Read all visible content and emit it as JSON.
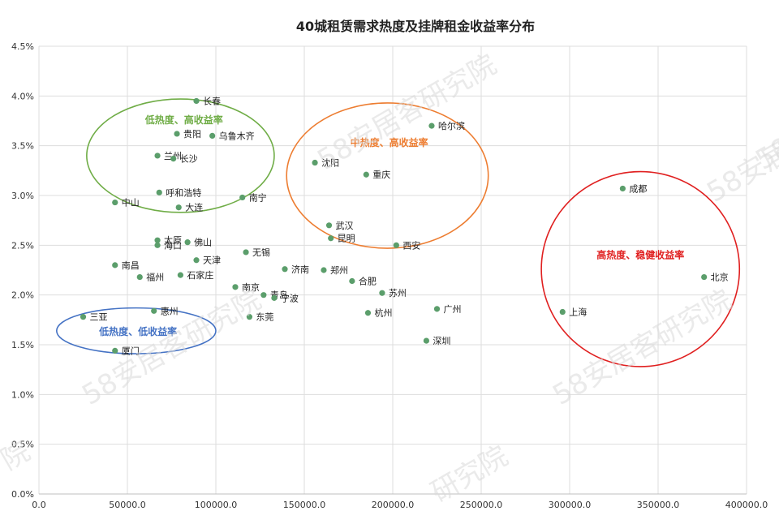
{
  "chart_data": {
    "type": "scatter",
    "title": "40城租赁需求热度及挂牌租金收益率分布",
    "xlabel": "",
    "ylabel": "",
    "xlim": [
      0,
      400000
    ],
    "ylim": [
      0,
      4.5
    ],
    "x_ticks": [
      "0.0",
      "50000.0",
      "100000.0",
      "150000.0",
      "200000.0",
      "250000.0",
      "300000.0",
      "350000.0",
      "400000.0"
    ],
    "y_ticks": [
      "0.0%",
      "0.5%",
      "1.0%",
      "1.5%",
      "2.0%",
      "2.5%",
      "3.0%",
      "3.5%",
      "4.0%",
      "4.5%"
    ],
    "grid": true,
    "point_color": "#5b9e6b",
    "points": [
      {
        "name": "长春",
        "x": 89000,
        "y": 3.95
      },
      {
        "name": "贵阳",
        "x": 78000,
        "y": 3.62
      },
      {
        "name": "乌鲁木齐",
        "x": 98000,
        "y": 3.6
      },
      {
        "name": "兰州",
        "x": 67000,
        "y": 3.4
      },
      {
        "name": "长沙",
        "x": 76000,
        "y": 3.37
      },
      {
        "name": "呼和浩特",
        "x": 68000,
        "y": 3.03
      },
      {
        "name": "南宁",
        "x": 115000,
        "y": 2.98
      },
      {
        "name": "中山",
        "x": 43000,
        "y": 2.93
      },
      {
        "name": "大连",
        "x": 79000,
        "y": 2.88
      },
      {
        "name": "沈阳",
        "x": 156000,
        "y": 3.33
      },
      {
        "name": "重庆",
        "x": 185000,
        "y": 3.21
      },
      {
        "name": "哈尔滨",
        "x": 222000,
        "y": 3.7
      },
      {
        "name": "武汉",
        "x": 164000,
        "y": 2.7
      },
      {
        "name": "昆明",
        "x": 165000,
        "y": 2.57
      },
      {
        "name": "西安",
        "x": 202000,
        "y": 2.5
      },
      {
        "name": "太原",
        "x": 67000,
        "y": 2.55
      },
      {
        "name": "海口",
        "x": 67000,
        "y": 2.5
      },
      {
        "name": "佛山",
        "x": 84000,
        "y": 2.53
      },
      {
        "name": "无锡",
        "x": 117000,
        "y": 2.43
      },
      {
        "name": "天津",
        "x": 89000,
        "y": 2.35
      },
      {
        "name": "南昌",
        "x": 43000,
        "y": 2.3
      },
      {
        "name": "济南",
        "x": 139000,
        "y": 2.26
      },
      {
        "name": "郑州",
        "x": 161000,
        "y": 2.25
      },
      {
        "name": "福州",
        "x": 57000,
        "y": 2.18
      },
      {
        "name": "石家庄",
        "x": 80000,
        "y": 2.2
      },
      {
        "name": "合肥",
        "x": 177000,
        "y": 2.14
      },
      {
        "name": "南京",
        "x": 111000,
        "y": 2.08
      },
      {
        "name": "苏州",
        "x": 194000,
        "y": 2.02
      },
      {
        "name": "青岛",
        "x": 127000,
        "y": 2.0
      },
      {
        "name": "宁波",
        "x": 133000,
        "y": 1.97
      },
      {
        "name": "三亚",
        "x": 25000,
        "y": 1.78
      },
      {
        "name": "惠州",
        "x": 65000,
        "y": 1.84
      },
      {
        "name": "东莞",
        "x": 119000,
        "y": 1.78
      },
      {
        "name": "杭州",
        "x": 186000,
        "y": 1.82
      },
      {
        "name": "广州",
        "x": 225000,
        "y": 1.86
      },
      {
        "name": "深圳",
        "x": 219000,
        "y": 1.54
      },
      {
        "name": "厦门",
        "x": 43000,
        "y": 1.44
      },
      {
        "name": "成都",
        "x": 330000,
        "y": 3.07
      },
      {
        "name": "北京",
        "x": 376000,
        "y": 2.18
      },
      {
        "name": "上海",
        "x": 296000,
        "y": 1.83
      }
    ],
    "annotations": [
      {
        "label": "低热度、高收益率",
        "color": "#70ad47",
        "cx": 80000,
        "cy": 3.4,
        "rx": 53000,
        "ry": 0.57,
        "label_x": 82000,
        "label_y": 3.76
      },
      {
        "label": "中热度、高收益率",
        "color": "#ed7d31",
        "cx": 197000,
        "cy": 3.2,
        "rx": 57000,
        "ry": 0.73,
        "label_x": 198000,
        "label_y": 3.53
      },
      {
        "label": "高热度、稳健收益率",
        "color": "#e02020",
        "cx": 340000,
        "cy": 2.26,
        "rx": 56000,
        "ry": 0.98,
        "label_x": 340000,
        "label_y": 2.4
      },
      {
        "label": "低热度、低收益率",
        "color": "#4472c4",
        "cx": 55000,
        "cy": 1.64,
        "rx": 45000,
        "ry": 0.23,
        "label_x": 56000,
        "label_y": 1.63
      }
    ]
  },
  "watermarks": [
    "58安居客研究院",
    "58安居客研究院",
    "58安居客研究院",
    "58安居客研究院",
    "研究院",
    "58安",
    "院"
  ]
}
